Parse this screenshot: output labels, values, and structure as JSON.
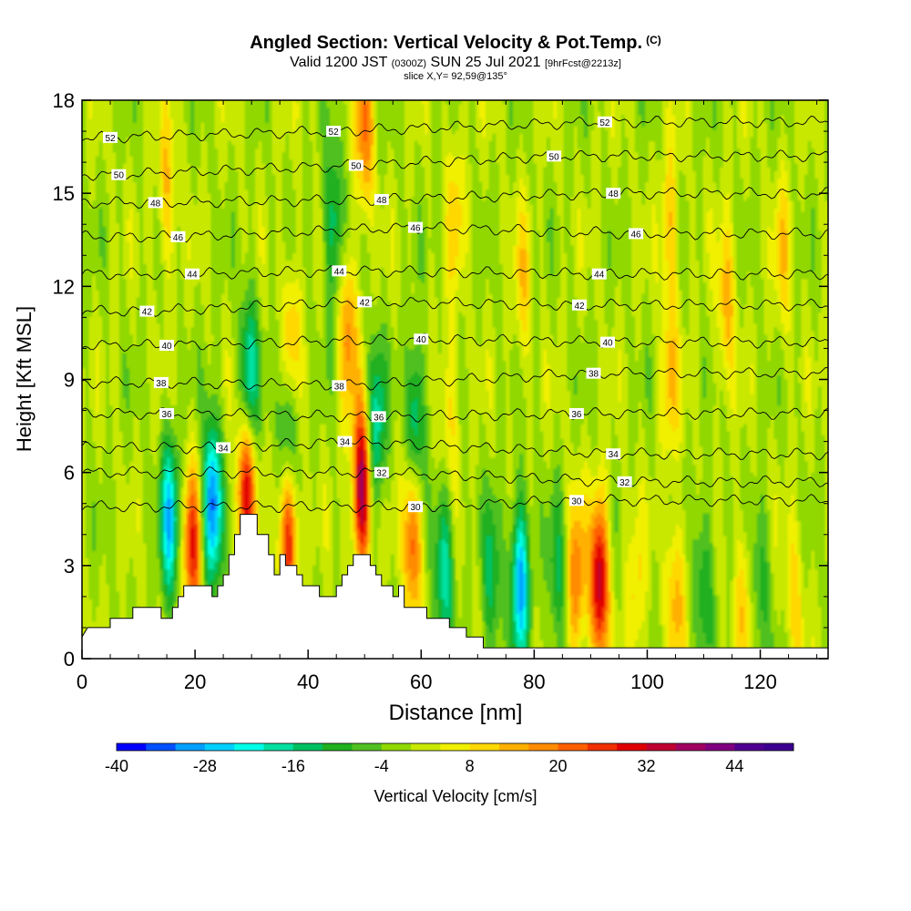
{
  "header": {
    "title": "Angled Section: Vertical Velocity & Pot.Temp.",
    "title_tag": "(C)",
    "valid_main": "Valid 1200 JST",
    "valid_utc": "(0300Z)",
    "valid_date": "SUN 25 Jul 2021",
    "valid_fcst": "[9hrFcst@2213z]",
    "slice": "slice X,Y= 92,59@135°"
  },
  "chart_data": {
    "type": "heatmap",
    "xlabel": "Distance [nm]",
    "ylabel": "Height [Kft MSL]",
    "xlim": [
      0,
      132
    ],
    "ylim": [
      0,
      18
    ],
    "xticks": [
      0,
      20,
      40,
      60,
      80,
      100,
      120
    ],
    "yticks": [
      0,
      3,
      6,
      9,
      12,
      15,
      18
    ],
    "colorbar": {
      "label": "Vertical Velocity [cm/s]",
      "range": [
        -40,
        52
      ],
      "step": 4,
      "tick_values": [
        -40,
        -28,
        -16,
        -4,
        8,
        20,
        32,
        44
      ],
      "colors": [
        "#0000ff",
        "#0050ff",
        "#00a0ff",
        "#00d0ff",
        "#00ffe8",
        "#00e0a0",
        "#00c060",
        "#20b020",
        "#50c020",
        "#90d800",
        "#c8e800",
        "#f0f000",
        "#ffd800",
        "#ffb000",
        "#ff8c00",
        "#ff6000",
        "#f03000",
        "#e00000",
        "#c00030",
        "#a00060",
        "#800080",
        "#500090",
        "#3c0090"
      ]
    },
    "background_level": 0,
    "updrafts": [
      {
        "x": 29,
        "z": 5.5,
        "w": 32
      },
      {
        "x": 36.5,
        "z": 4.0,
        "w": 30
      },
      {
        "x": 49.5,
        "z": 5.5,
        "w": 40
      },
      {
        "x": 58.5,
        "z": 4.0,
        "w": 26
      },
      {
        "x": 19.5,
        "z": 3.5,
        "w": 26
      },
      {
        "x": 47,
        "z": 10.5,
        "w": 18
      },
      {
        "x": 37,
        "z": 10.0,
        "w": 16
      },
      {
        "x": 91.5,
        "z": 2.5,
        "w": 36
      },
      {
        "x": 87.5,
        "z": 2.5,
        "w": 20
      },
      {
        "x": 50,
        "z": 17.0,
        "w": 20
      },
      {
        "x": 15,
        "z": 15.0,
        "w": 12
      },
      {
        "x": 114,
        "z": 11.5,
        "w": 14
      },
      {
        "x": 104,
        "z": 9.0,
        "w": 12
      },
      {
        "x": 104,
        "z": 14.0,
        "w": 12
      },
      {
        "x": 66,
        "z": 14.5,
        "w": 10
      },
      {
        "x": 65,
        "z": 8.0,
        "w": 10
      },
      {
        "x": 78,
        "z": 12.0,
        "w": 10
      },
      {
        "x": 124,
        "z": 13.0,
        "w": 10
      },
      {
        "x": 105,
        "z": 2.0,
        "w": 14
      },
      {
        "x": 98,
        "z": 2.0,
        "w": 10
      },
      {
        "x": 117,
        "z": 2.0,
        "w": 10
      },
      {
        "x": 126,
        "z": 2.0,
        "w": 10
      }
    ],
    "downdrafts": [
      {
        "x": 15.5,
        "z": 4.5,
        "w": -26
      },
      {
        "x": 23,
        "z": 5.0,
        "w": -34
      },
      {
        "x": 29.5,
        "z": 9.0,
        "w": -22
      },
      {
        "x": 36.5,
        "z": 7.5,
        "w": -20
      },
      {
        "x": 44.5,
        "z": 14.0,
        "w": -16
      },
      {
        "x": 52,
        "z": 7.5,
        "w": -20
      },
      {
        "x": 59,
        "z": 7.5,
        "w": -20
      },
      {
        "x": 64,
        "z": 3.0,
        "w": -20
      },
      {
        "x": 77.5,
        "z": 2.5,
        "w": -30
      },
      {
        "x": 72.5,
        "z": 2.5,
        "w": -14
      },
      {
        "x": 84,
        "z": 2.5,
        "w": -12
      },
      {
        "x": 110,
        "z": 2.5,
        "w": -12
      },
      {
        "x": 120,
        "z": 2.5,
        "w": -10
      }
    ],
    "theta_labels": [
      {
        "v": "52",
        "x": 5,
        "z": 16.8
      },
      {
        "v": "52",
        "x": 44.5,
        "z": 17.0
      },
      {
        "v": "52",
        "x": 92.5,
        "z": 17.3
      },
      {
        "v": "50",
        "x": 6.5,
        "z": 15.6
      },
      {
        "v": "50",
        "x": 48.5,
        "z": 15.9
      },
      {
        "v": "50",
        "x": 83.5,
        "z": 16.2
      },
      {
        "v": "48",
        "x": 13,
        "z": 14.7
      },
      {
        "v": "48",
        "x": 53,
        "z": 14.8
      },
      {
        "v": "48",
        "x": 94,
        "z": 15.0
      },
      {
        "v": "46",
        "x": 17,
        "z": 13.6
      },
      {
        "v": "46",
        "x": 59,
        "z": 13.9
      },
      {
        "v": "46",
        "x": 98,
        "z": 13.7
      },
      {
        "v": "44",
        "x": 19.5,
        "z": 12.4
      },
      {
        "v": "44",
        "x": 45.5,
        "z": 12.5
      },
      {
        "v": "44",
        "x": 91.5,
        "z": 12.4
      },
      {
        "v": "42",
        "x": 11.5,
        "z": 11.2
      },
      {
        "v": "42",
        "x": 50,
        "z": 11.5
      },
      {
        "v": "42",
        "x": 88,
        "z": 11.4
      },
      {
        "v": "40",
        "x": 15,
        "z": 10.1
      },
      {
        "v": "40",
        "x": 60,
        "z": 10.3
      },
      {
        "v": "40",
        "x": 93,
        "z": 10.2
      },
      {
        "v": "38",
        "x": 14,
        "z": 8.9
      },
      {
        "v": "38",
        "x": 45.5,
        "z": 8.8
      },
      {
        "v": "38",
        "x": 90.5,
        "z": 9.2
      },
      {
        "v": "36",
        "x": 15,
        "z": 7.9
      },
      {
        "v": "36",
        "x": 52.5,
        "z": 7.8
      },
      {
        "v": "36",
        "x": 87.5,
        "z": 7.9
      },
      {
        "v": "34",
        "x": 25,
        "z": 6.8
      },
      {
        "v": "34",
        "x": 46.5,
        "z": 7.0
      },
      {
        "v": "34",
        "x": 94,
        "z": 6.6
      },
      {
        "v": "32",
        "x": 53,
        "z": 6.0
      },
      {
        "v": "32",
        "x": 96,
        "z": 5.7
      },
      {
        "v": "30",
        "x": 59,
        "z": 4.9
      },
      {
        "v": "30",
        "x": 87.5,
        "z": 5.1
      }
    ],
    "terrain": [
      [
        0,
        0.7
      ],
      [
        1,
        1.0
      ],
      [
        5,
        1.0
      ],
      [
        5,
        1.3
      ],
      [
        9,
        1.3
      ],
      [
        9,
        1.65
      ],
      [
        14,
        1.65
      ],
      [
        14,
        1.3
      ],
      [
        16,
        1.3
      ],
      [
        16,
        1.65
      ],
      [
        17,
        1.65
      ],
      [
        17,
        2.0
      ],
      [
        18,
        2.0
      ],
      [
        18,
        2.35
      ],
      [
        23,
        2.35
      ],
      [
        23,
        2.0
      ],
      [
        24,
        2.0
      ],
      [
        24,
        2.35
      ],
      [
        25,
        2.35
      ],
      [
        25,
        2.7
      ],
      [
        26,
        2.7
      ],
      [
        26,
        3.35
      ],
      [
        27,
        3.35
      ],
      [
        27,
        4.0
      ],
      [
        28,
        4.0
      ],
      [
        28,
        4.65
      ],
      [
        31,
        4.65
      ],
      [
        31,
        4.0
      ],
      [
        33,
        4.0
      ],
      [
        33,
        3.35
      ],
      [
        34,
        3.35
      ],
      [
        34,
        2.7
      ],
      [
        35,
        2.7
      ],
      [
        35,
        3.35
      ],
      [
        36,
        3.35
      ],
      [
        36,
        3.0
      ],
      [
        38,
        3.0
      ],
      [
        38,
        2.7
      ],
      [
        39,
        2.7
      ],
      [
        39,
        2.35
      ],
      [
        42,
        2.35
      ],
      [
        42,
        2.0
      ],
      [
        45,
        2.0
      ],
      [
        45,
        2.35
      ],
      [
        46,
        2.35
      ],
      [
        46,
        2.7
      ],
      [
        47,
        2.7
      ],
      [
        47,
        3.0
      ],
      [
        48,
        3.0
      ],
      [
        48,
        3.35
      ],
      [
        51,
        3.35
      ],
      [
        51,
        3.0
      ],
      [
        52,
        3.0
      ],
      [
        52,
        2.7
      ],
      [
        53,
        2.7
      ],
      [
        53,
        2.35
      ],
      [
        55,
        2.35
      ],
      [
        55,
        2.0
      ],
      [
        56,
        2.0
      ],
      [
        56,
        2.35
      ],
      [
        57,
        2.35
      ],
      [
        57,
        1.65
      ],
      [
        61,
        1.65
      ],
      [
        61,
        1.3
      ],
      [
        65,
        1.3
      ],
      [
        65,
        1.0
      ],
      [
        68,
        1.0
      ],
      [
        68,
        0.7
      ],
      [
        71,
        0.7
      ],
      [
        71,
        0.35
      ],
      [
        132,
        0.35
      ]
    ]
  }
}
